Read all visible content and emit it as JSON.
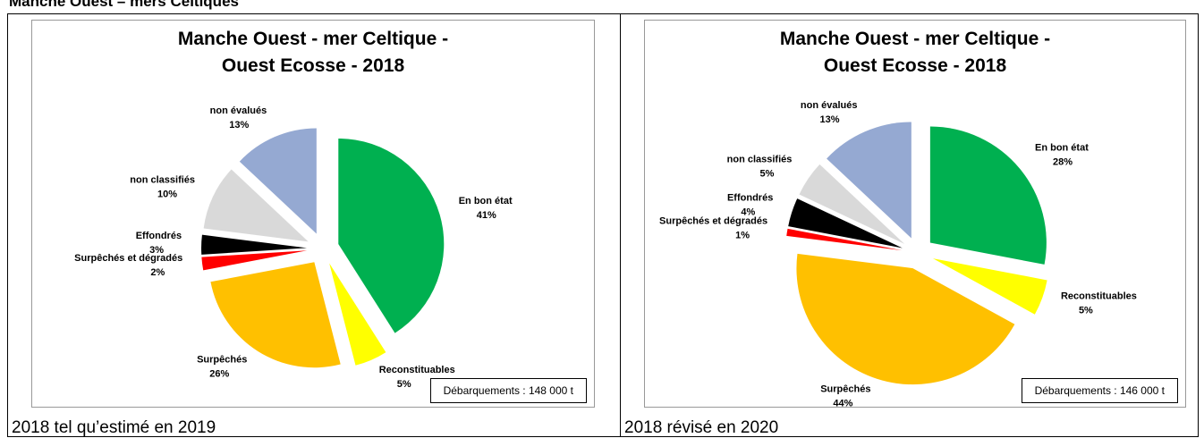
{
  "header": "Manche Ouest – mers Celtiques",
  "chart_data": [
    {
      "type": "pie",
      "title": "Manche Ouest - mer Celtique - Ouest Ecosse - 2018",
      "categories": [
        "En bon état",
        "Reconstituables",
        "Surpêchés",
        "Surpêchés et dégradés",
        "Effondrés",
        "non classifiés",
        "non évalués"
      ],
      "values": [
        41,
        5,
        26,
        2,
        3,
        10,
        13
      ],
      "value_labels": [
        "41%",
        "5%",
        "26%",
        "2%",
        "3%",
        "10%",
        "13%"
      ],
      "colors": [
        "#00b050",
        "#ffff00",
        "#ffc000",
        "#ff0000",
        "#000000",
        "#d9d9d9",
        "#95a9d2"
      ],
      "annotation": "Débarquements : 148 000 t",
      "caption": "2018 tel qu’estimé en 2019"
    },
    {
      "type": "pie",
      "title": "Manche Ouest - mer Celtique - Ouest Ecosse - 2018",
      "categories": [
        "En bon état",
        "Reconstituables",
        "Surpêchés",
        "Surpêchés et dégradés",
        "Effondrés",
        "non classifiés",
        "non évalués"
      ],
      "values": [
        28,
        5,
        44,
        1,
        4,
        5,
        13
      ],
      "value_labels": [
        "28%",
        "5%",
        "44%",
        "1%",
        "4%",
        "5%",
        "13%"
      ],
      "colors": [
        "#00b050",
        "#ffff00",
        "#ffc000",
        "#ff0000",
        "#000000",
        "#d9d9d9",
        "#95a9d2"
      ],
      "annotation": "Débarquements : 146 000 t",
      "caption": "2018 révisé en 2020"
    }
  ]
}
